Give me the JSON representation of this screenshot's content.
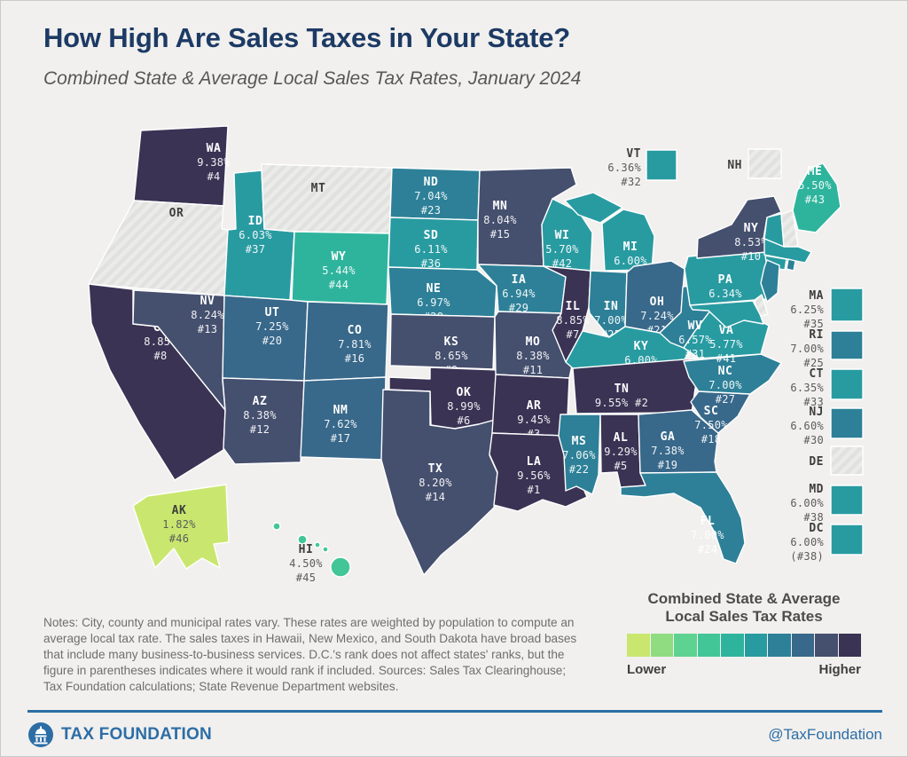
{
  "header": {
    "title": "How High Are Sales Taxes in Your State?",
    "subtitle": "Combined State & Average Local Sales Tax Rates, January 2024"
  },
  "map": {
    "palette": [
      "#c9e76f",
      "#8fdd80",
      "#5ed391",
      "#43c697",
      "#2eb49d",
      "#289ba1",
      "#2d8097",
      "#38688a",
      "#454f6e",
      "#3a3354"
    ],
    "states": [
      {
        "abbr": "WA",
        "rate": "9.38%",
        "rank": "#4",
        "bucket": 9
      },
      {
        "abbr": "OR",
        "rate": null,
        "rank": null,
        "bucket": null
      },
      {
        "abbr": "CA",
        "rate": "8.85%",
        "rank": "#8",
        "bucket": 9
      },
      {
        "abbr": "NV",
        "rate": "8.24%",
        "rank": "#13",
        "bucket": 8
      },
      {
        "abbr": "ID",
        "rate": "6.03%",
        "rank": "#37",
        "bucket": 5
      },
      {
        "abbr": "MT",
        "rate": null,
        "rank": null,
        "bucket": null
      },
      {
        "abbr": "WY",
        "rate": "5.44%",
        "rank": "#44",
        "bucket": 4
      },
      {
        "abbr": "UT",
        "rate": "7.25%",
        "rank": "#20",
        "bucket": 7
      },
      {
        "abbr": "CO",
        "rate": "7.81%",
        "rank": "#16",
        "bucket": 7
      },
      {
        "abbr": "AZ",
        "rate": "8.38%",
        "rank": "#12",
        "bucket": 8
      },
      {
        "abbr": "NM",
        "rate": "7.62%",
        "rank": "#17",
        "bucket": 7
      },
      {
        "abbr": "AK",
        "rate": "1.82%",
        "rank": "#46",
        "bucket": 0,
        "dark_label": true
      },
      {
        "abbr": "HI",
        "rate": "4.50%",
        "rank": "#45",
        "bucket": 3,
        "dark_label": true
      },
      {
        "abbr": "ND",
        "rate": "7.04%",
        "rank": "#23",
        "bucket": 6
      },
      {
        "abbr": "SD",
        "rate": "6.11%",
        "rank": "#36",
        "bucket": 5
      },
      {
        "abbr": "NE",
        "rate": "6.97%",
        "rank": "#28",
        "bucket": 6
      },
      {
        "abbr": "KS",
        "rate": "8.65%",
        "rank": "#9",
        "bucket": 8
      },
      {
        "abbr": "OK",
        "rate": "8.99%",
        "rank": "#6",
        "bucket": 9
      },
      {
        "abbr": "TX",
        "rate": "8.20%",
        "rank": "#14",
        "bucket": 8
      },
      {
        "abbr": "MN",
        "rate": "8.04%",
        "rank": "#15",
        "bucket": 8
      },
      {
        "abbr": "IA",
        "rate": "6.94%",
        "rank": "#29",
        "bucket": 6
      },
      {
        "abbr": "MO",
        "rate": "8.38%",
        "rank": "#11",
        "bucket": 8
      },
      {
        "abbr": "WI",
        "rate": "5.70%",
        "rank": "#42",
        "bucket": 5
      },
      {
        "abbr": "IL",
        "rate": "8.85%",
        "rank": "#7",
        "bucket": 9
      },
      {
        "abbr": "MI",
        "rate": "6.00%",
        "rank": "#38",
        "bucket": 5
      },
      {
        "abbr": "IN",
        "rate": "7.00%",
        "rank": "#25",
        "bucket": 6
      },
      {
        "abbr": "OH",
        "rate": "7.24%",
        "rank": "#21",
        "bucket": 7
      },
      {
        "abbr": "KY",
        "rate": "6.00%",
        "rank": "#38",
        "bucket": 5
      },
      {
        "abbr": "TN",
        "rate": "9.55%",
        "rank": "#2",
        "bucket": 9,
        "lines": [
          "TN",
          "9.55% #2"
        ]
      },
      {
        "abbr": "AR",
        "rate": "9.45%",
        "rank": "#3",
        "bucket": 9
      },
      {
        "abbr": "LA",
        "rate": "9.56%",
        "rank": "#1",
        "bucket": 9
      },
      {
        "abbr": "MS",
        "rate": "7.06%",
        "rank": "#22",
        "bucket": 6
      },
      {
        "abbr": "AL",
        "rate": "9.29%",
        "rank": "#5",
        "bucket": 9
      },
      {
        "abbr": "GA",
        "rate": "7.38%",
        "rank": "#19",
        "bucket": 7
      },
      {
        "abbr": "FL",
        "rate": "7.00%",
        "rank": "#24",
        "bucket": 6
      },
      {
        "abbr": "SC",
        "rate": "7.50%",
        "rank": "#18",
        "bucket": 7
      },
      {
        "abbr": "NC",
        "rate": "7.00%",
        "rank": "#27",
        "bucket": 6
      },
      {
        "abbr": "VA",
        "rate": "5.77%",
        "rank": "#41",
        "bucket": 5
      },
      {
        "abbr": "WV",
        "rate": "6.57%",
        "rank": "#31",
        "bucket": 6
      },
      {
        "abbr": "PA",
        "rate": "6.34%",
        "rank": "#34",
        "bucket": 5
      },
      {
        "abbr": "NY",
        "rate": "8.53%",
        "rank": "#10",
        "bucket": 8
      },
      {
        "abbr": "ME",
        "rate": "5.50%",
        "rank": "#43",
        "bucket": 4
      },
      {
        "abbr": "VT",
        "rate": "6.36%",
        "rank": "#32",
        "bucket": 5
      },
      {
        "abbr": "NH",
        "rate": null,
        "rank": null,
        "bucket": null
      },
      {
        "abbr": "MA",
        "rate": "6.25%",
        "rank": "#35",
        "bucket": 5
      },
      {
        "abbr": "RI",
        "rate": "7.00%",
        "rank": "#25",
        "bucket": 6
      },
      {
        "abbr": "CT",
        "rate": "6.35%",
        "rank": "#33",
        "bucket": 5
      },
      {
        "abbr": "NJ",
        "rate": "6.60%",
        "rank": "#30",
        "bucket": 6
      },
      {
        "abbr": "DE",
        "rate": null,
        "rank": null,
        "bucket": null
      },
      {
        "abbr": "MD",
        "rate": "6.00%",
        "rank": "#38",
        "bucket": 5
      },
      {
        "abbr": "DC",
        "rate": "6.00%",
        "rank": "(#38)",
        "bucket": 5,
        "lines": [
          "DC",
          "6.00%",
          "(#38)"
        ]
      }
    ]
  },
  "legend": {
    "title_line1": "Combined State & Average",
    "title_line2": "Local Sales Tax Rates",
    "lower": "Lower",
    "higher": "Higher"
  },
  "notes": "Notes: City, county and municipal rates vary. These rates are weighted by population to compute an average local tax rate. The sales taxes in Hawaii, New Mexico, and South Dakota have broad bases that include many business-to-business services. D.C.'s rank does not affect states' ranks, but the figure in parentheses indicates where it would rank if included. Sources: Sales Tax Clearinghouse; Tax Foundation calculations; State Revenue Department websites.",
  "footer": {
    "brand": "TAX FOUNDATION",
    "handle": "@TaxFoundation"
  }
}
